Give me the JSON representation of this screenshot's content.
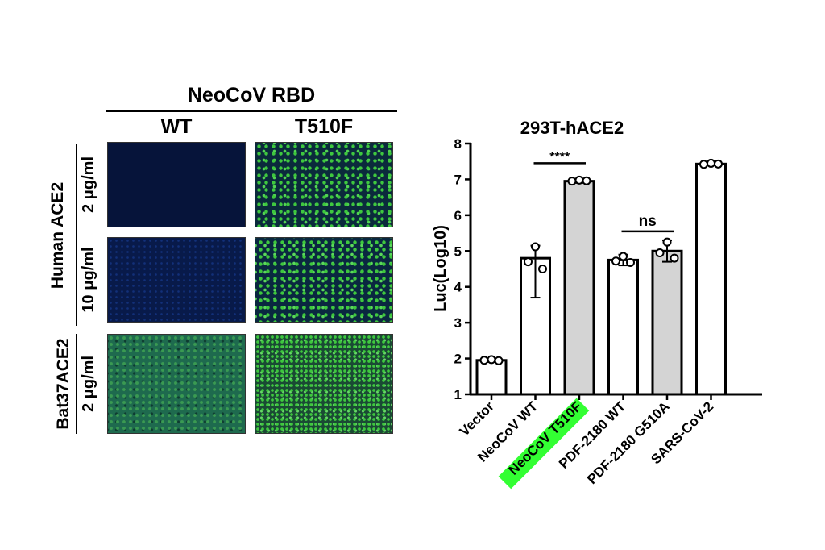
{
  "panel_a": {
    "header": "NeoCoV RBD",
    "columns": [
      "WT",
      "T510F"
    ],
    "receptors": [
      {
        "name": "Human ACE2",
        "doses": [
          "2 μg/ml",
          "10 μg/ml"
        ]
      },
      {
        "name": "Bat37ACE2",
        "doses": [
          "2 μg/ml"
        ]
      }
    ]
  },
  "chart_data": {
    "type": "bar",
    "title": "293T-hACE2",
    "ylabel": "Luc(Log10)",
    "xlabel": "",
    "ylim": [
      1,
      8
    ],
    "yticks": [
      1,
      2,
      3,
      4,
      5,
      6,
      7,
      8
    ],
    "categories": [
      "Vector",
      "NeoCoV WT",
      "NeoCoV T510F",
      "PDF-2180 WT",
      "PDF-2180 G510A",
      "SARS-CoV-2"
    ],
    "values": [
      1.95,
      4.8,
      6.95,
      4.75,
      5.0,
      7.43
    ],
    "error_low": [
      1.9,
      3.7,
      6.9,
      4.6,
      4.7,
      7.4
    ],
    "error_high": [
      2.0,
      5.15,
      7.0,
      4.9,
      5.3,
      7.46
    ],
    "points": [
      [
        1.95,
        1.97,
        1.94
      ],
      [
        4.7,
        5.12,
        4.5
      ],
      [
        6.95,
        6.98,
        6.96
      ],
      [
        4.72,
        4.85,
        4.68
      ],
      [
        4.95,
        5.25,
        4.8
      ],
      [
        7.42,
        7.45,
        7.43
      ]
    ],
    "bar_fill": [
      "#ffffff",
      "#ffffff",
      "#d4d4d4",
      "#ffffff",
      "#d4d4d4",
      "#ffffff"
    ],
    "highlight_category": "NeoCoV T510F",
    "highlight_color": "#33ff33",
    "comparisons": [
      {
        "from": "NeoCoV WT",
        "to": "NeoCoV T510F",
        "label": "****",
        "y": 7.45
      },
      {
        "from": "PDF-2180 WT",
        "to": "PDF-2180 G510A",
        "label": "ns",
        "y": 5.55
      }
    ],
    "grid": false,
    "legend": "none"
  }
}
